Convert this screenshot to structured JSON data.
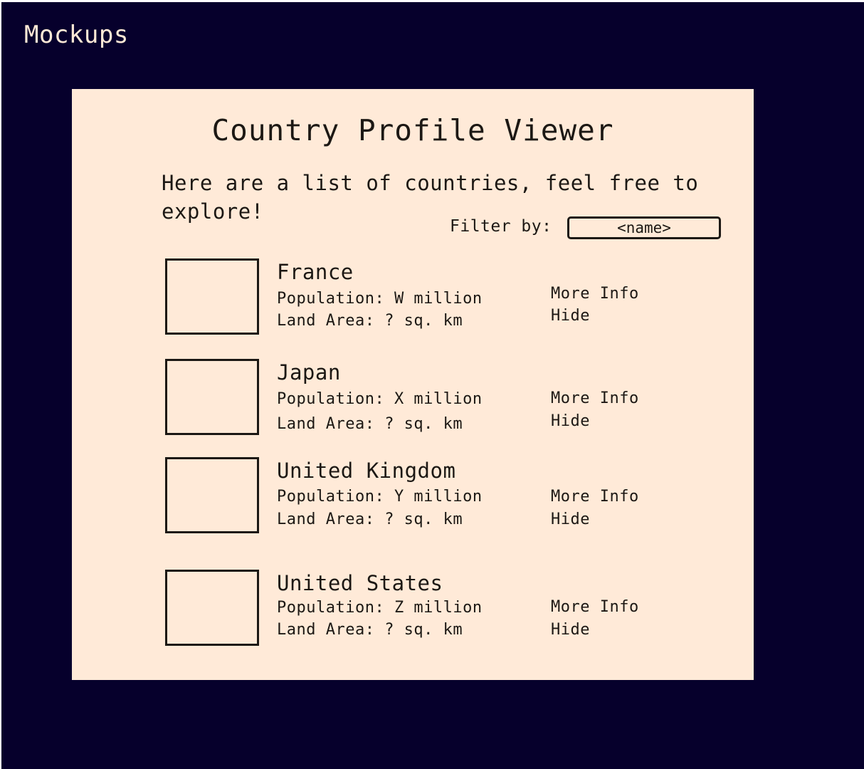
{
  "frame": {
    "title": "Mockups"
  },
  "app": {
    "title": "Country Profile Viewer",
    "intro": "Here are a list of countries, feel free to explore!",
    "filter": {
      "label": "Filter by:",
      "placeholder": "<name>"
    }
  },
  "countries": [
    {
      "name": "France",
      "population": "Population: W million",
      "land_area": "Land Area: ? sq. km",
      "more_info_label": "More Info",
      "hide_label": "Hide"
    },
    {
      "name": "Japan",
      "population": "Population: X million",
      "land_area": "Land Area: ? sq. km",
      "more_info_label": "More Info",
      "hide_label": "Hide"
    },
    {
      "name": "United Kingdom",
      "population": "Population: Y million",
      "land_area": "Land Area: ? sq. km",
      "more_info_label": "More Info",
      "hide_label": "Hide"
    },
    {
      "name": "United States",
      "population": "Population: Z million",
      "land_area": "Land Area: ? sq. km",
      "more_info_label": "More Info",
      "hide_label": "Hide"
    }
  ],
  "colors": {
    "background": "#06002c",
    "panel": "#ffead8",
    "ink": "#1c1814",
    "frame_title": "#fde9d6"
  }
}
